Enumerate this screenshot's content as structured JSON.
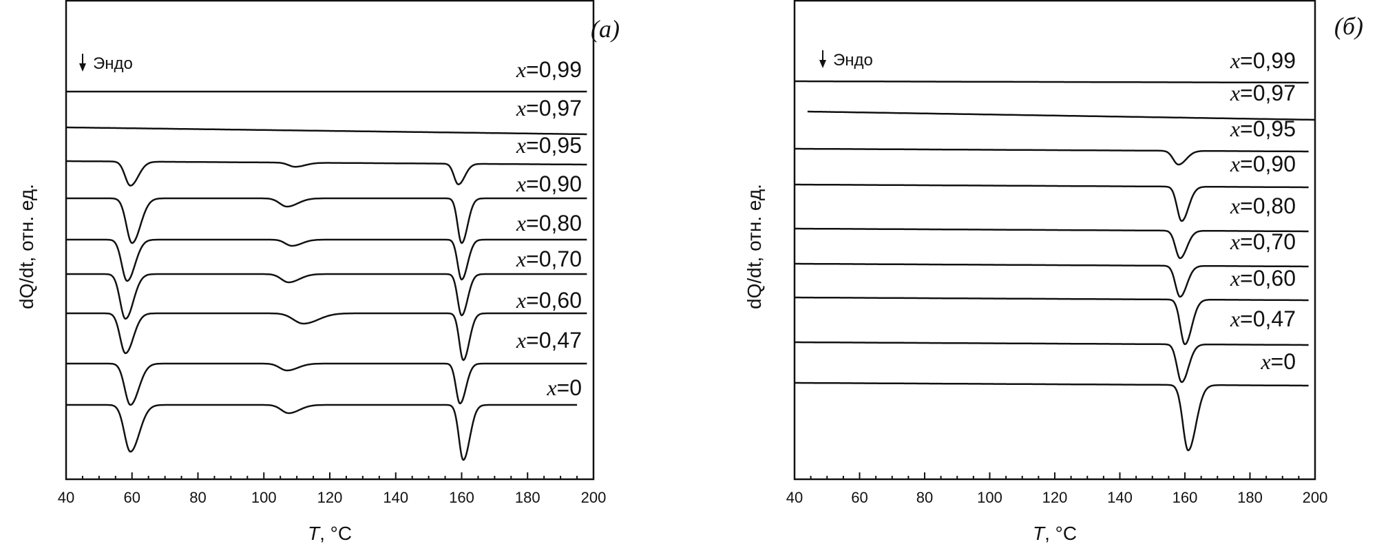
{
  "chart_data": [
    {
      "type": "line",
      "panel_label": "(а)",
      "xlabel": "T, °C",
      "xlabel_var": "T",
      "xlabel_unit": ", °C",
      "ylabel": "dQ/dt, отн. ед.",
      "xlim": [
        40,
        200
      ],
      "xticks": [
        "40",
        "60",
        "80",
        "100",
        "120",
        "140",
        "160",
        "180",
        "200"
      ],
      "annotation": "Эндо",
      "series": [
        {
          "name": "x=0,99",
          "var": "x",
          "val": "=0,99",
          "x_end": 198,
          "tilt": 0,
          "peaks": []
        },
        {
          "name": "x=0,97",
          "var": "x",
          "val": "=0,97",
          "x_end": 198,
          "tilt": 10,
          "peaks": []
        },
        {
          "name": "x=0,95",
          "var": "x",
          "val": "=0,95",
          "x_end": 198,
          "tilt": 5,
          "peaks": [
            {
              "T": 59.5,
              "depth": 35,
              "w": 1.6
            },
            {
              "T": 109.5,
              "depth": 6,
              "w": 2.0
            },
            {
              "T": 159,
              "depth": 30,
              "w": 1.3
            }
          ]
        },
        {
          "name": "x=0,90",
          "var": "x",
          "val": "=0,90",
          "x_end": 198,
          "tilt": 0,
          "peaks": [
            {
              "T": 60,
              "depth": 65,
              "w": 1.7
            },
            {
              "T": 107,
              "depth": 12,
              "w": 2.2
            },
            {
              "T": 160,
              "depth": 65,
              "w": 1.2
            }
          ]
        },
        {
          "name": "x=0,80",
          "var": "x",
          "val": "=0,80",
          "x_end": 198,
          "tilt": 0,
          "peaks": [
            {
              "T": 58.5,
              "depth": 60,
              "w": 1.6
            },
            {
              "T": 108.5,
              "depth": 9,
              "w": 2.0
            },
            {
              "T": 160,
              "depth": 58,
              "w": 1.2
            }
          ]
        },
        {
          "name": "x=0,70",
          "var": "x",
          "val": "=0,70",
          "x_end": 198,
          "tilt": 0,
          "peaks": [
            {
              "T": 58,
              "depth": 65,
              "w": 1.6
            },
            {
              "T": 107.5,
              "depth": 12,
              "w": 2.2
            },
            {
              "T": 160,
              "depth": 60,
              "w": 1.2
            }
          ]
        },
        {
          "name": "x=0,60",
          "var": "x",
          "val": "=0,60",
          "x_end": 198,
          "tilt": 0,
          "peaks": [
            {
              "T": 58,
              "depth": 58,
              "w": 1.6
            },
            {
              "T": 112,
              "depth": 15,
              "w": 3.0
            },
            {
              "T": 160.5,
              "depth": 68,
              "w": 1.2
            }
          ]
        },
        {
          "name": "x=0,47",
          "var": "x",
          "val": "=0,47",
          "x_end": 198,
          "tilt": 0,
          "peaks": [
            {
              "T": 59.5,
              "depth": 60,
              "w": 1.7
            },
            {
              "T": 107,
              "depth": 10,
              "w": 2.2
            },
            {
              "T": 159.5,
              "depth": 58,
              "w": 1.2
            }
          ]
        },
        {
          "name": "x=0",
          "var": "x",
          "val": "=0",
          "x_end": 195,
          "tilt": 0,
          "peaks": [
            {
              "T": 59.5,
              "depth": 68,
              "w": 1.8
            },
            {
              "T": 107.5,
              "depth": 12,
              "w": 2.2
            },
            {
              "T": 160.5,
              "depth": 80,
              "w": 1.3
            }
          ]
        }
      ]
    },
    {
      "type": "line",
      "panel_label": "(б)",
      "xlabel": "T, °C",
      "xlabel_var": "T",
      "xlabel_unit": ", °C",
      "ylabel": "dQ/dt, отн. ед.",
      "xlim": [
        40,
        200
      ],
      "xticks": [
        "40",
        "60",
        "80",
        "100",
        "120",
        "140",
        "160",
        "180",
        "200"
      ],
      "annotation": "Эндо",
      "series": [
        {
          "name": "x=0,99",
          "var": "x",
          "val": "=0,99",
          "x_start": 40,
          "x_end": 198,
          "tilt": 2,
          "peaks": []
        },
        {
          "name": "x=0,97",
          "var": "x",
          "val": "=0,97",
          "x_start": 44,
          "x_end": 200,
          "tilt": 12,
          "peaks": []
        },
        {
          "name": "x=0,95",
          "var": "x",
          "val": "=0,95",
          "x_start": 40,
          "x_end": 198,
          "tilt": 4,
          "peaks": [
            {
              "T": 158,
              "depth": 20,
              "w": 1.6
            }
          ]
        },
        {
          "name": "x=0,90",
          "var": "x",
          "val": "=0,90",
          "x_start": 40,
          "x_end": 198,
          "tilt": 4,
          "peaks": [
            {
              "T": 159,
              "depth": 50,
              "w": 1.4
            }
          ]
        },
        {
          "name": "x=0,80",
          "var": "x",
          "val": "=0,80",
          "x_start": 40,
          "x_end": 198,
          "tilt": 4,
          "peaks": [
            {
              "T": 158.5,
              "depth": 40,
              "w": 1.4
            }
          ]
        },
        {
          "name": "x=0,70",
          "var": "x",
          "val": "=0,70",
          "x_start": 40,
          "x_end": 198,
          "tilt": 4,
          "peaks": [
            {
              "T": 158.5,
              "depth": 45,
              "w": 1.4
            }
          ]
        },
        {
          "name": "x=0,60",
          "var": "x",
          "val": "=0,60",
          "x_start": 40,
          "x_end": 198,
          "tilt": 4,
          "peaks": [
            {
              "T": 160,
              "depth": 65,
              "w": 1.4
            }
          ]
        },
        {
          "name": "x=0,47",
          "var": "x",
          "val": "=0,47",
          "x_start": 40,
          "x_end": 198,
          "tilt": 4,
          "peaks": [
            {
              "T": 159,
              "depth": 55,
              "w": 1.4
            }
          ]
        },
        {
          "name": "x=0",
          "var": "x",
          "val": "=0",
          "x_start": 40,
          "x_end": 198,
          "tilt": 4,
          "peaks": [
            {
              "T": 161,
              "depth": 95,
              "w": 1.6
            }
          ]
        }
      ]
    }
  ]
}
